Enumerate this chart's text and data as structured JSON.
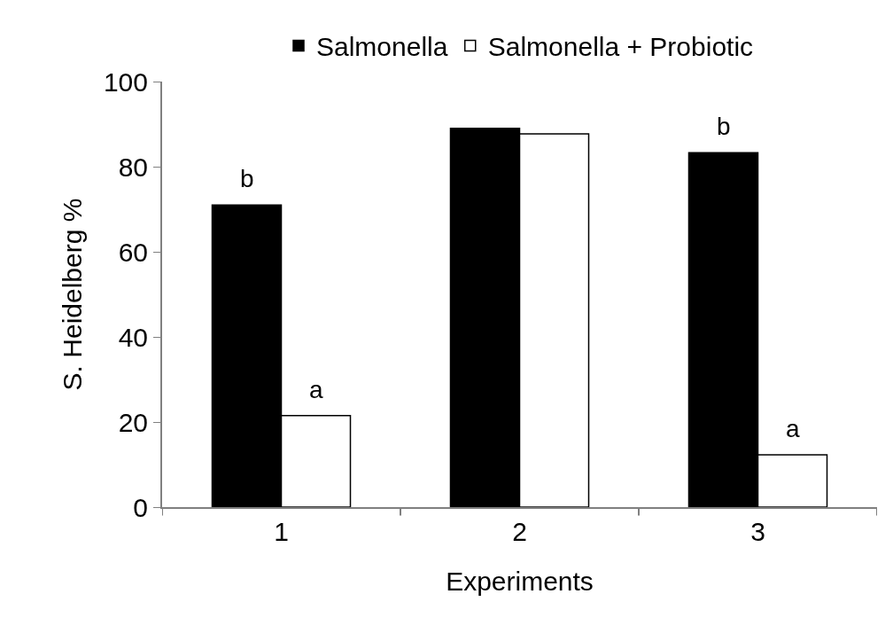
{
  "chart_data": {
    "type": "bar",
    "xlabel": "Experiments",
    "ylabel": "S. Heidelberg %",
    "categories": [
      "1",
      "2",
      "3"
    ],
    "series": [
      {
        "name": "Salmonella",
        "color": "#000000",
        "values": [
          71,
          89,
          83.3
        ]
      },
      {
        "name": "Salmonella + Probiotic",
        "color": "#ffffff",
        "values": [
          21.5,
          87.7,
          12.3
        ]
      }
    ],
    "ylim": [
      0,
      100
    ],
    "yticks": [
      0,
      20,
      40,
      60,
      80,
      100
    ],
    "grid": false,
    "legend": "top",
    "annotations": [
      {
        "text": "b",
        "x": "1",
        "y": 71
      },
      {
        "text": "a",
        "x": "1",
        "y": 21.5
      },
      {
        "text": "b",
        "x": "3",
        "y": 83.3
      },
      {
        "text": "a",
        "x": "3",
        "y": 12.3
      }
    ]
  }
}
